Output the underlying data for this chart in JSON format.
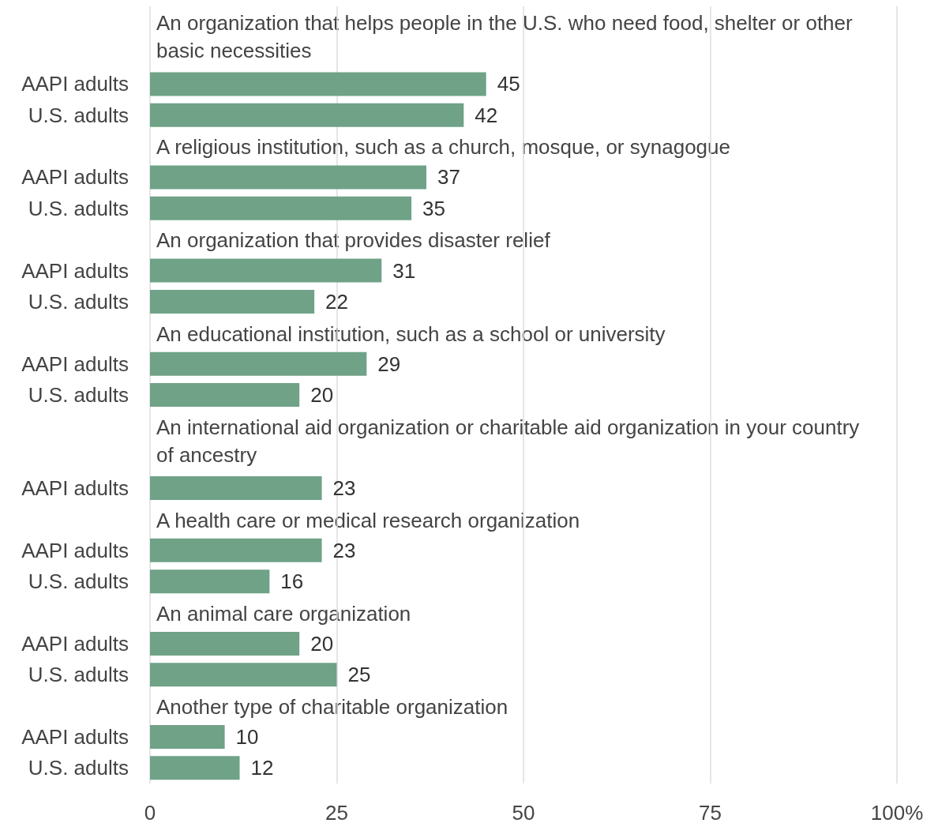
{
  "chart_data": {
    "type": "bar",
    "orientation": "horizontal",
    "categories": [
      null,
      null,
      "AAPI adults",
      "U.S. adults",
      null,
      "AAPI adults",
      "U.S. adults",
      null,
      "AAPI adults",
      "U.S. adults",
      null,
      "AAPI adults",
      "U.S. adults",
      null,
      null,
      "AAPI adults",
      null,
      "AAPI adults",
      "U.S. adults",
      null,
      "AAPI adults",
      "U.S. adults",
      null,
      "AAPI adults",
      "U.S. adults"
    ],
    "values": [
      null,
      null,
      45,
      42,
      null,
      37,
      35,
      null,
      31,
      22,
      null,
      29,
      20,
      null,
      null,
      23,
      null,
      23,
      16,
      null,
      20,
      25,
      null,
      10,
      12
    ],
    "color": "#6fa287",
    "data_labels": true,
    "xlim": [
      0,
      100
    ],
    "xticks": [
      0,
      25,
      50,
      75,
      {
        "value": 100,
        "label": "100%"
      }
    ],
    "grid": "x",
    "annotations": [
      "An organization that helps people in the U.S. who need food, shelter or other basic necessities",
      "A religious institution, such as a church, mosque, or synagogue",
      "An organization that provides disaster relief",
      "An educational institution, such as a school or university",
      "An international aid organization or charitable aid organization in your country of ancestry",
      "A health care or medical research organization",
      "An animal care organization",
      "Another type of charitable organization"
    ]
  }
}
